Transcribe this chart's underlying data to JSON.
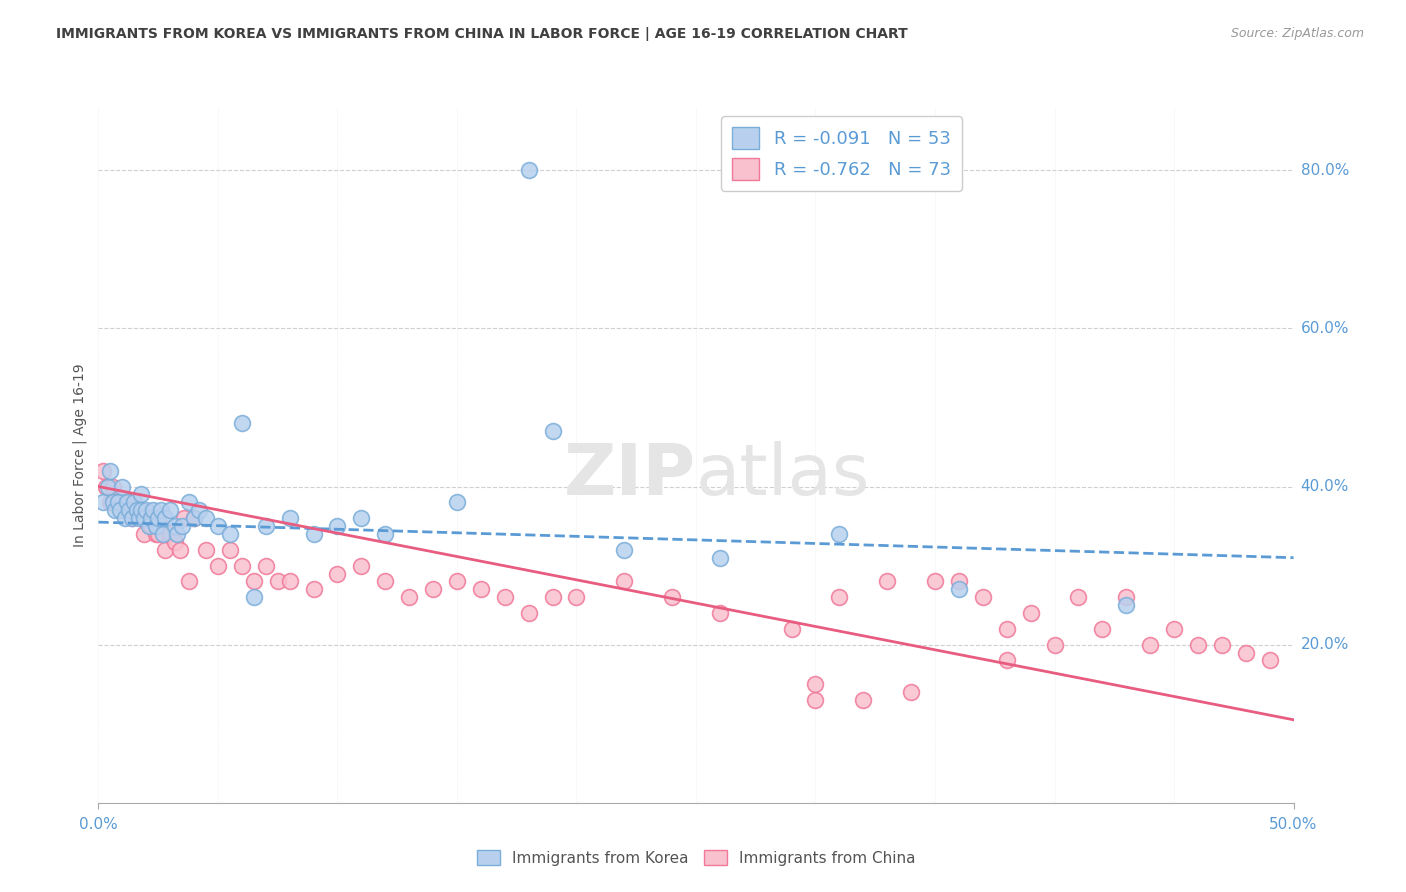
{
  "title": "IMMIGRANTS FROM KOREA VS IMMIGRANTS FROM CHINA IN LABOR FORCE | AGE 16-19 CORRELATION CHART",
  "source": "Source: ZipAtlas.com",
  "ylabel": "In Labor Force | Age 16-19",
  "xlim": [
    0.0,
    0.5
  ],
  "ylim": [
    0.0,
    0.88
  ],
  "xtick_labels": [
    "0.0%",
    "50.0%"
  ],
  "xtick_values": [
    0.0,
    0.5
  ],
  "ytick_values_right": [
    0.8,
    0.6,
    0.4,
    0.2
  ],
  "ytick_labels_right": [
    "80.0%",
    "60.0%",
    "40.0%",
    "20.0%"
  ],
  "watermark": "ZIPatlas",
  "legend_korea_R": "-0.091",
  "legend_korea_N": "53",
  "legend_china_R": "-0.762",
  "legend_china_N": "73",
  "legend_label_korea": "Immigrants from Korea",
  "legend_label_china": "Immigrants from China",
  "korea_fill_color": "#b8d0ee",
  "china_fill_color": "#f9c0ce",
  "korea_edge_color": "#7aadd9",
  "china_edge_color": "#f07898",
  "korea_line_color": "#5b9bd5",
  "china_line_color": "#e85c80",
  "background_color": "#ffffff",
  "grid_color": "#d0d0d0",
  "text_color": "#5b9bd5",
  "title_color": "#404040",
  "korea_scatter_x": [
    0.002,
    0.004,
    0.005,
    0.006,
    0.007,
    0.008,
    0.009,
    0.01,
    0.011,
    0.012,
    0.013,
    0.014,
    0.015,
    0.016,
    0.017,
    0.018,
    0.018,
    0.019,
    0.02,
    0.021,
    0.022,
    0.023,
    0.024,
    0.025,
    0.026,
    0.027,
    0.028,
    0.03,
    0.032,
    0.033,
    0.035,
    0.038,
    0.04,
    0.042,
    0.045,
    0.05,
    0.055,
    0.06,
    0.065,
    0.07,
    0.08,
    0.09,
    0.1,
    0.11,
    0.12,
    0.15,
    0.18,
    0.19,
    0.22,
    0.26,
    0.31,
    0.36,
    0.43
  ],
  "korea_scatter_y": [
    0.38,
    0.4,
    0.42,
    0.38,
    0.37,
    0.38,
    0.37,
    0.4,
    0.36,
    0.38,
    0.37,
    0.36,
    0.38,
    0.37,
    0.36,
    0.37,
    0.39,
    0.36,
    0.37,
    0.35,
    0.36,
    0.37,
    0.35,
    0.36,
    0.37,
    0.34,
    0.36,
    0.37,
    0.35,
    0.34,
    0.35,
    0.38,
    0.36,
    0.37,
    0.36,
    0.35,
    0.34,
    0.48,
    0.26,
    0.35,
    0.36,
    0.34,
    0.35,
    0.36,
    0.34,
    0.38,
    0.8,
    0.47,
    0.32,
    0.31,
    0.34,
    0.27,
    0.25
  ],
  "china_scatter_x": [
    0.002,
    0.003,
    0.005,
    0.006,
    0.007,
    0.008,
    0.01,
    0.011,
    0.012,
    0.013,
    0.014,
    0.015,
    0.016,
    0.018,
    0.019,
    0.02,
    0.022,
    0.024,
    0.025,
    0.026,
    0.028,
    0.03,
    0.032,
    0.034,
    0.036,
    0.038,
    0.04,
    0.045,
    0.05,
    0.055,
    0.06,
    0.065,
    0.07,
    0.075,
    0.08,
    0.09,
    0.1,
    0.11,
    0.12,
    0.13,
    0.14,
    0.15,
    0.16,
    0.17,
    0.18,
    0.19,
    0.2,
    0.22,
    0.24,
    0.26,
    0.29,
    0.31,
    0.33,
    0.35,
    0.37,
    0.39,
    0.41,
    0.43,
    0.45,
    0.47,
    0.3,
    0.32,
    0.34,
    0.36,
    0.38,
    0.4,
    0.42,
    0.44,
    0.46,
    0.48,
    0.49,
    0.3,
    0.38
  ],
  "china_scatter_y": [
    0.42,
    0.4,
    0.38,
    0.4,
    0.38,
    0.38,
    0.38,
    0.37,
    0.38,
    0.38,
    0.36,
    0.37,
    0.37,
    0.36,
    0.34,
    0.36,
    0.35,
    0.34,
    0.34,
    0.35,
    0.32,
    0.34,
    0.33,
    0.32,
    0.36,
    0.28,
    0.36,
    0.32,
    0.3,
    0.32,
    0.3,
    0.28,
    0.3,
    0.28,
    0.28,
    0.27,
    0.29,
    0.3,
    0.28,
    0.26,
    0.27,
    0.28,
    0.27,
    0.26,
    0.24,
    0.26,
    0.26,
    0.28,
    0.26,
    0.24,
    0.22,
    0.26,
    0.28,
    0.28,
    0.26,
    0.24,
    0.26,
    0.26,
    0.22,
    0.2,
    0.13,
    0.13,
    0.14,
    0.28,
    0.22,
    0.2,
    0.22,
    0.2,
    0.2,
    0.19,
    0.18,
    0.15,
    0.18
  ],
  "korea_trend_x": [
    0.0,
    0.5
  ],
  "korea_trend_y": [
    0.355,
    0.31
  ],
  "china_trend_x": [
    0.0,
    0.5
  ],
  "china_trend_y": [
    0.4,
    0.105
  ]
}
